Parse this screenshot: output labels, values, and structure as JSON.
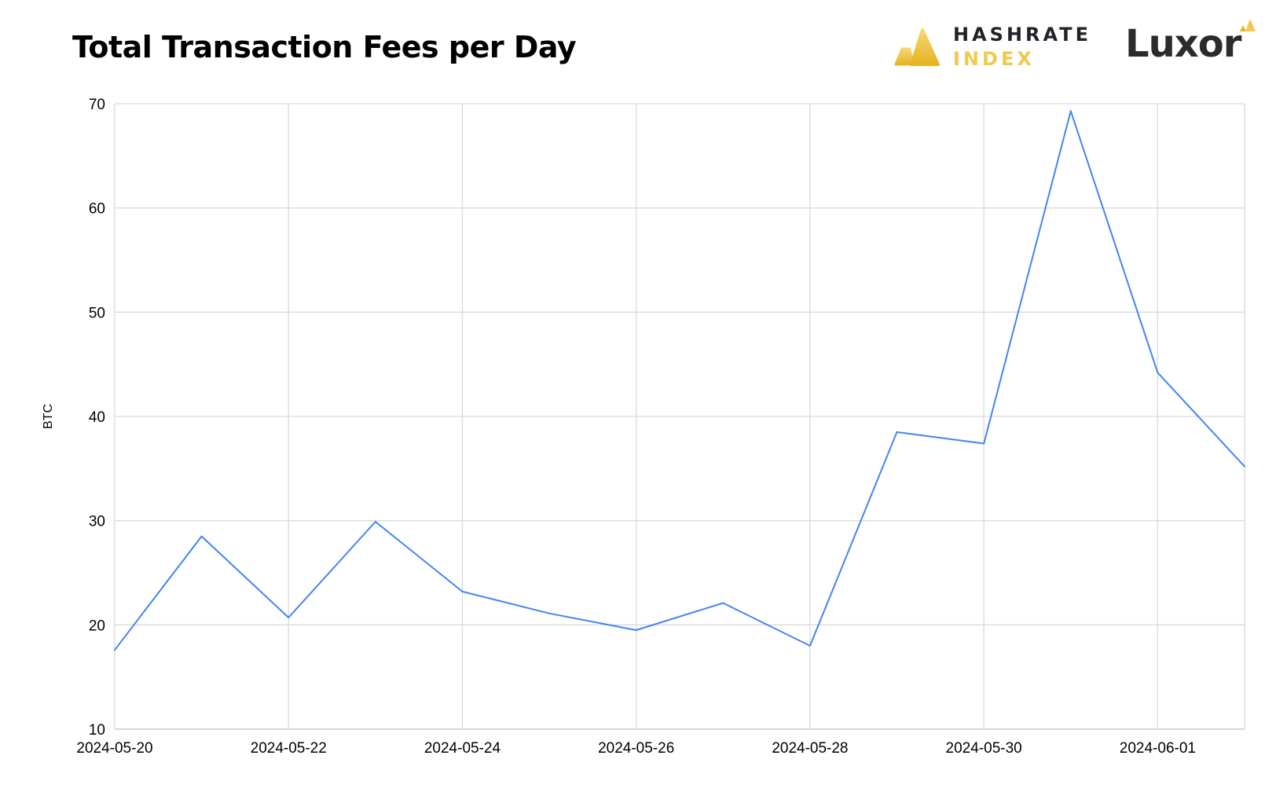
{
  "header": {
    "title": "Total Transaction Fees per Day"
  },
  "brands": {
    "hashrate_line1": "HASHRATE",
    "hashrate_line2": "INDEX",
    "luxor": "Luxor",
    "hashrate_icon": "hashrate-index-logo-icon",
    "luxor_icon": "luxor-logo-icon",
    "colors": {
      "gold": "#f2c94c",
      "gold_dark": "#e6b422",
      "dark": "#2b2b2b"
    }
  },
  "chart_data": {
    "type": "line",
    "title": "Total Transaction Fees per Day",
    "xlabel": "",
    "ylabel": "BTC",
    "ylim": [
      10,
      70
    ],
    "yticks": [
      10,
      20,
      30,
      40,
      50,
      60,
      70
    ],
    "x_tick_labels": [
      "2024-05-20",
      "2024-05-22",
      "2024-05-24",
      "2024-05-26",
      "2024-05-28",
      "2024-05-30",
      "2024-06-01"
    ],
    "grid": true,
    "line_color": "#4285f4",
    "series": [
      {
        "x": [
          "2024-05-20",
          "2024-05-21",
          "2024-05-22",
          "2024-05-23",
          "2024-05-24",
          "2024-05-25",
          "2024-05-26",
          "2024-05-27",
          "2024-05-28",
          "2024-05-29",
          "2024-05-30",
          "2024-05-31",
          "2024-06-01",
          "2024-06-02"
        ],
        "values": [
          17.6,
          28.5,
          20.7,
          29.9,
          23.2,
          21.1,
          19.5,
          22.1,
          18.0,
          38.5,
          37.4,
          69.3,
          44.2,
          35.2
        ]
      }
    ]
  }
}
